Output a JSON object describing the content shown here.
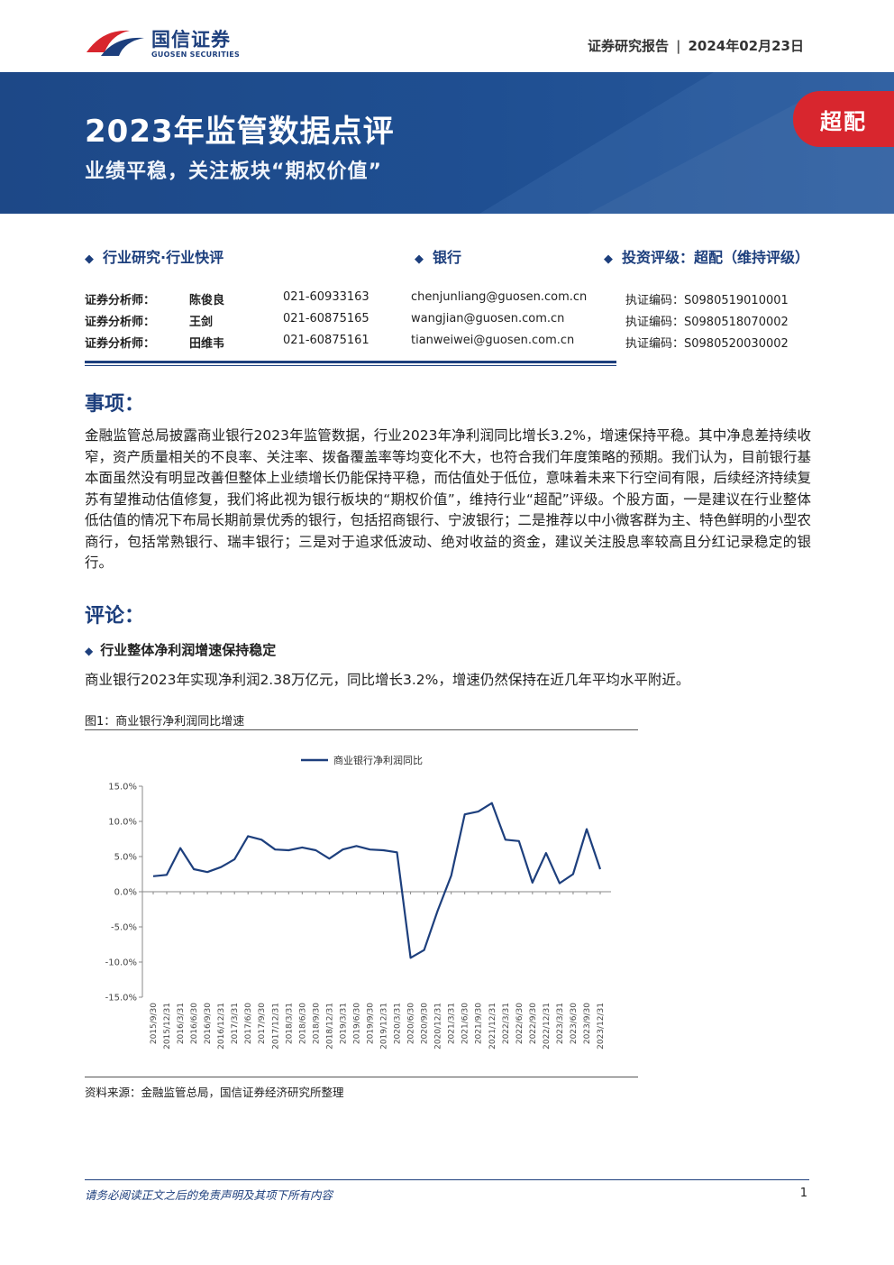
{
  "header": {
    "logo_cn": "国信证券",
    "logo_en": "GUOSEN SECURITIES",
    "report_type": "证券研究报告",
    "date": "2024年02月23日"
  },
  "banner": {
    "title": "2023年监管数据点评",
    "subtitle": "业绩平稳，关注板块“期权价值”",
    "rating": "超配"
  },
  "meta": {
    "category": "行业研究·行业快评",
    "sector": "银行",
    "rating_label": "投资评级：超配（维持评级）"
  },
  "analysts": [
    {
      "label": "证券分析师：",
      "name": "陈俊良",
      "phone": "021-60933163",
      "email": "chenjunliang@guosen.com.cn",
      "cert": "执证编码：S0980519010001"
    },
    {
      "label": "证券分析师：",
      "name": "王剑",
      "phone": "021-60875165",
      "email": "wangjian@guosen.com.cn",
      "cert": "执证编码：S0980518070002"
    },
    {
      "label": "证券分析师：",
      "name": "田维韦",
      "phone": "021-60875161",
      "email": "tianweiwei@guosen.com.cn",
      "cert": "执证编码：S0980520030002"
    }
  ],
  "section1": {
    "heading": "事项：",
    "body": "金融监管总局披露商业银行2023年监管数据，行业2023年净利润同比增长3.2%，增速保持平稳。其中净息差持续收窄，资产质量相关的不良率、关注率、拨备覆盖率等均变化不大，也符合我们年度策略的预期。我们认为，目前银行基本面虽然没有明显改善但整体上业绩增长仍能保持平稳，而估值处于低位，意味着未来下行空间有限，后续经济持续复苏有望推动估值修复，我们将此视为银行板块的“期权价值”，维持行业“超配”评级。个股方面，一是建议在行业整体低估值的情况下布局长期前景优秀的银行，包括招商银行、宁波银行；二是推荐以中小微客群为主、特色鲜明的小型农商行，包括常熟银行、瑞丰银行；三是对于追求低波动、绝对收益的资金，建议关注股息率较高且分红记录稳定的银行。"
  },
  "section2": {
    "heading": "评论：",
    "subheading": "行业整体净利润增速保持稳定",
    "body": "商业银行2023年实现净利润2.38万亿元，同比增长3.2%，增速仍然保持在近几年平均水平附近。"
  },
  "figure": {
    "caption": "图1：商业银行净利润同比增速",
    "source": "资料来源：金融监管总局，国信证券经济研究所整理"
  },
  "chart_data": {
    "type": "line",
    "title": "",
    "xlabel": "",
    "ylabel": "",
    "ylim": [
      -15,
      15
    ],
    "yticks": [
      "15.0%",
      "10.0%",
      "5.0%",
      "0.0%",
      "-5.0%",
      "-10.0%",
      "-15.0%"
    ],
    "ytick_values": [
      15,
      10,
      5,
      0,
      -5,
      -10,
      -15
    ],
    "legend_position": "top-center",
    "grid": false,
    "x": [
      "2015/9/30",
      "2015/12/31",
      "2016/3/31",
      "2016/6/30",
      "2016/9/30",
      "2016/12/31",
      "2017/3/31",
      "2017/6/30",
      "2017/9/30",
      "2017/12/31",
      "2018/3/31",
      "2018/6/30",
      "2018/9/30",
      "2018/12/31",
      "2019/3/31",
      "2019/6/30",
      "2019/9/30",
      "2019/12/31",
      "2020/3/31",
      "2020/6/30",
      "2020/9/30",
      "2020/12/31",
      "2021/3/31",
      "2021/6/30",
      "2021/9/30",
      "2021/12/31",
      "2022/3/31",
      "2022/6/30",
      "2022/9/30",
      "2022/12/31",
      "2023/3/31",
      "2023/6/30",
      "2023/9/30",
      "2023/12/31"
    ],
    "series": [
      {
        "name": "商业银行净利润同比",
        "color": "#1d3f7d",
        "values": [
          2.2,
          2.4,
          6.2,
          3.2,
          2.8,
          3.5,
          4.6,
          7.9,
          7.4,
          6.0,
          5.9,
          6.3,
          5.9,
          4.7,
          6.0,
          6.5,
          6.0,
          5.9,
          5.6,
          -9.4,
          -8.3,
          -2.7,
          2.3,
          11.0,
          11.4,
          12.6,
          7.4,
          7.2,
          1.3,
          5.5,
          1.2,
          2.5,
          8.9,
          3.2
        ]
      }
    ]
  },
  "footer": {
    "disclaimer": "请务必阅读正文之后的免责声明及其项下所有内容",
    "page": "1"
  },
  "colors": {
    "brand": "#1d3f7d",
    "rating_red": "#d8262e",
    "banner_blue": "#1f4f92"
  }
}
